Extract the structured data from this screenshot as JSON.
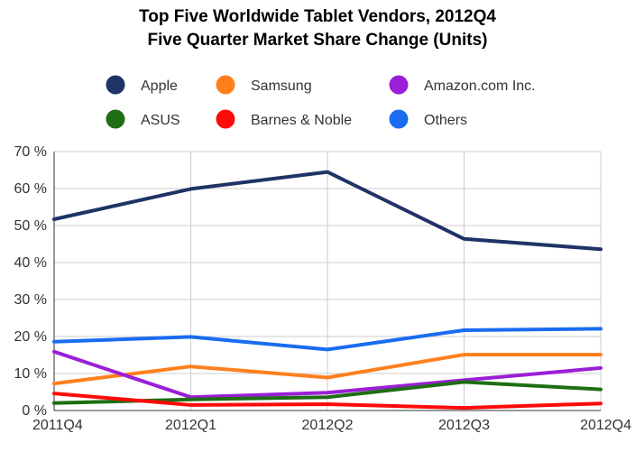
{
  "chart_data": {
    "type": "line",
    "title": "Top Five Worldwide Tablet Vendors, 2012Q4",
    "subtitle": "Five Quarter Market Share Change (Units)",
    "xlabel": "",
    "ylabel": "",
    "categories": [
      "2011Q4",
      "2012Q1",
      "2012Q2",
      "2012Q3",
      "2012Q4"
    ],
    "y_ticks": [
      "0 %",
      "10 %",
      "20 %",
      "30 %",
      "40 %",
      "50 %",
      "60 %",
      "70 %"
    ],
    "ylim": [
      0,
      70
    ],
    "grid": true,
    "legend_position": "top",
    "series": [
      {
        "name": "Apple",
        "color": "#1f3366",
        "values": [
          51.7,
          59.9,
          64.5,
          46.4,
          43.6
        ]
      },
      {
        "name": "Samsung",
        "color": "#ff7f1e",
        "values": [
          7.3,
          11.9,
          8.9,
          15.1,
          15.1
        ]
      },
      {
        "name": "Amazon.com Inc.",
        "color": "#9b1fd6",
        "values": [
          15.9,
          3.6,
          4.8,
          8.2,
          11.5
        ]
      },
      {
        "name": "ASUS",
        "color": "#1e6e14",
        "values": [
          2.0,
          3.0,
          3.6,
          7.7,
          5.7
        ]
      },
      {
        "name": "Barnes & Noble",
        "color": "#ff0a0a",
        "values": [
          4.6,
          1.5,
          1.7,
          0.7,
          1.9
        ]
      },
      {
        "name": "Others",
        "color": "#1a6cf0",
        "values": [
          18.6,
          19.9,
          16.5,
          21.7,
          22.1
        ]
      }
    ]
  }
}
